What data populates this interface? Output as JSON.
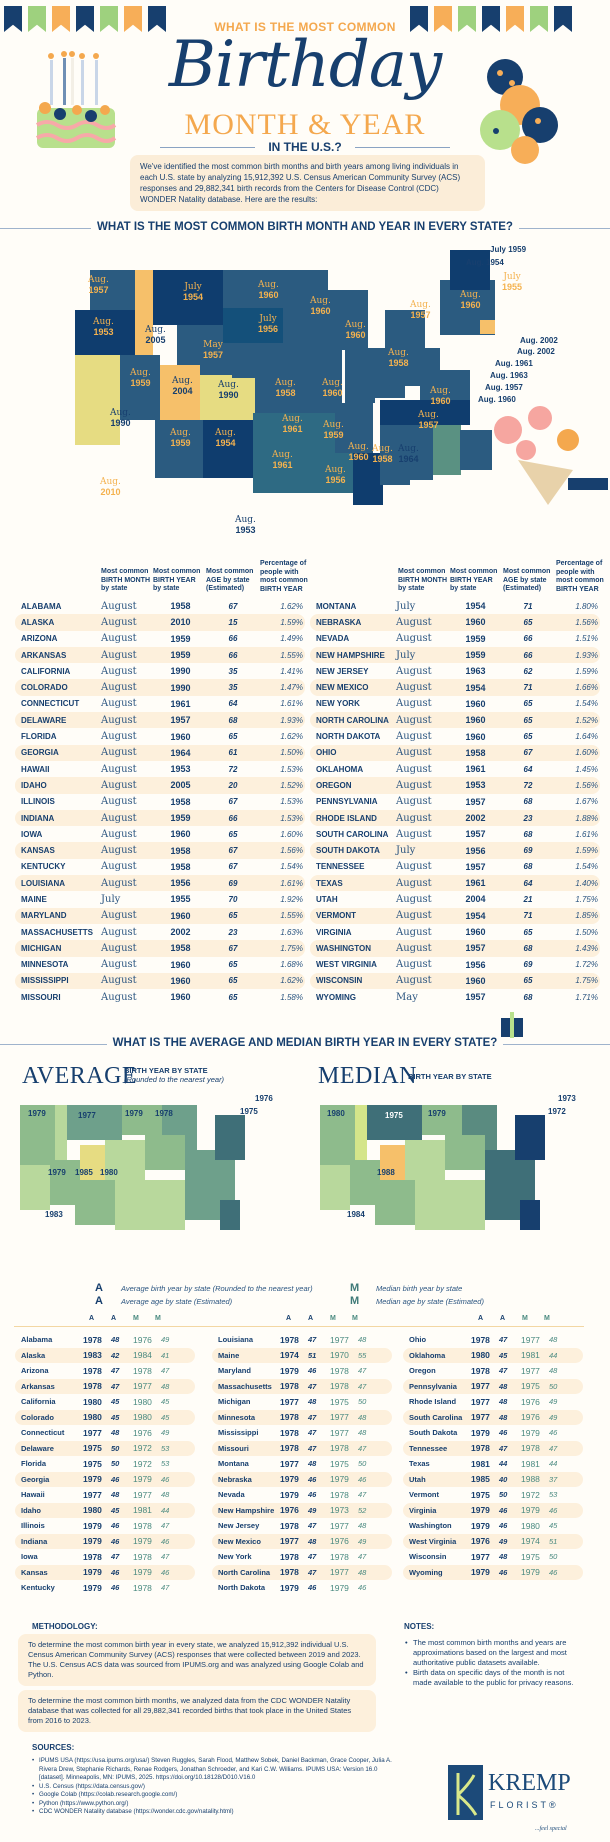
{
  "header": {
    "question": "WHAT IS THE MOST COMMON",
    "title": "Birthday",
    "subtitle": "MONTH & YEAR",
    "region": "IN THE U.S.?",
    "intro": "We've identified the most common birth months and birth years among living individuals in each U.S. state by analyzing 15,912,392 U.S. Census American Community Survey (ACS) responses and 29,882,341 birth records from the Centers for Disease Control (CDC) WONDER Natality database. Here are the results:"
  },
  "colors": {
    "navy": "#173f6e",
    "orange": "#f4a84e",
    "cream": "#fdf0dc",
    "teal": "#4a8a80"
  },
  "section1": {
    "heading": "WHAT IS THE MOST COMMON BIRTH MONTH AND YEAR IN EVERY STATE?",
    "columns": [
      "Most common BIRTH MONTH by state",
      "Most common BIRTH YEAR by state",
      "Most common AGE by state (Estimated)",
      "Percentage of people with most common BIRTH YEAR"
    ],
    "callouts": [
      "Aug. 1954",
      "July 1959",
      "Aug. 2002",
      "Aug. 2002",
      "Aug. 1961",
      "Aug. 1963",
      "Aug. 1957",
      "Aug. 1960"
    ]
  },
  "section2": {
    "heading": "WHAT IS THE AVERAGE AND MEDIAN BIRTH YEAR IN EVERY STATE?",
    "average_title": "AVERAGE",
    "average_sub": "BIRTH YEAR BY STATE",
    "average_note": "(Rounded to the nearest year)",
    "median_title": "MEDIAN",
    "median_sub": "BIRTH YEAR BY STATE",
    "legend": {
      "avg_year": "Average birth year by state (Rounded to the nearest year)",
      "avg_age": "Average age by state (Estimated)",
      "med_year": "Median birth year by state",
      "med_age": "Median age by state (Estimated)",
      "icon_ay": "A",
      "icon_aa": "A",
      "icon_my": "M",
      "icon_ma": "M"
    }
  },
  "methodology": {
    "heading": "METHODOLOGY:",
    "p1": "To determine the most common birth year in every state, we analyzed 15,912,392 individual U.S. Census American Community Survey (ACS) responses that were collected between 2019 and 2023. The U.S. Census ACS data was sourced from IPUMS.org and was analyzed using Google Colab and Python.",
    "p2": "To determine the most common birth months, we analyzed data from the CDC WONDER Natality database that was collected for all 29,882,341 recorded births that took place in the United States from 2016 to 2023."
  },
  "notes": {
    "heading": "NOTES:",
    "items": [
      "The most common birth months and years are approximations based on the largest and most authoritative public datasets available.",
      "Birth data on specific days of the month is not made available to the public for privacy reasons."
    ]
  },
  "sources": {
    "heading": "SOURCES:",
    "items": [
      "IPUMS USA (https://usa.ipums.org/usa/) Steven Ruggles, Sarah Flood, Matthew Sobek, Daniel Backman, Grace Cooper, Julia A. Rivera Drew, Stephanie Richards, Renae Rodgers, Jonathan Schroeder, and Kari C.W. Williams. IPUMS USA: Version 16.0 [dataset]. Minneapolis, MN: IPUMS, 2025. https://doi.org/10.18128/D010.V16.0",
      "U.S. Census (https://data.census.gov/)",
      "Google Colab (https://colab.research.google.com/)",
      "Python (https://www.python.org/)",
      "CDC WONDER Natality database (https://wonder.cdc.gov/natality.html)"
    ]
  },
  "logo": {
    "name": "KREMP",
    "sub": "FLORIST®",
    "tagline": "...feel special"
  },
  "chart_data": [
    {
      "type": "table",
      "title": "Most common birth month and year in every state",
      "columns": [
        "State",
        "Birth Month",
        "Birth Year",
        "Age (Estimated)",
        "Percentage"
      ],
      "rows": [
        [
          "ALABAMA",
          "August",
          "1958",
          "67",
          "1.62%"
        ],
        [
          "ALASKA",
          "August",
          "2010",
          "15",
          "1.59%"
        ],
        [
          "ARIZONA",
          "August",
          "1959",
          "66",
          "1.49%"
        ],
        [
          "ARKANSAS",
          "August",
          "1959",
          "66",
          "1.55%"
        ],
        [
          "CALIFORNIA",
          "August",
          "1990",
          "35",
          "1.41%"
        ],
        [
          "COLORADO",
          "August",
          "1990",
          "35",
          "1.47%"
        ],
        [
          "CONNECTICUT",
          "August",
          "1961",
          "64",
          "1.61%"
        ],
        [
          "DELAWARE",
          "August",
          "1957",
          "68",
          "1.93%"
        ],
        [
          "FLORIDA",
          "August",
          "1960",
          "65",
          "1.62%"
        ],
        [
          "GEORGIA",
          "August",
          "1964",
          "61",
          "1.50%"
        ],
        [
          "HAWAII",
          "August",
          "1953",
          "72",
          "1.53%"
        ],
        [
          "IDAHO",
          "August",
          "2005",
          "20",
          "1.52%"
        ],
        [
          "ILLINOIS",
          "August",
          "1958",
          "67",
          "1.53%"
        ],
        [
          "INDIANA",
          "August",
          "1959",
          "66",
          "1.53%"
        ],
        [
          "IOWA",
          "August",
          "1960",
          "65",
          "1.60%"
        ],
        [
          "KANSAS",
          "August",
          "1958",
          "67",
          "1.56%"
        ],
        [
          "KENTUCKY",
          "August",
          "1958",
          "67",
          "1.54%"
        ],
        [
          "LOUISIANA",
          "August",
          "1956",
          "69",
          "1.61%"
        ],
        [
          "MAINE",
          "July",
          "1955",
          "70",
          "1.92%"
        ],
        [
          "MARYLAND",
          "August",
          "1960",
          "65",
          "1.55%"
        ],
        [
          "MASSACHUSETTS",
          "August",
          "2002",
          "23",
          "1.63%"
        ],
        [
          "MICHIGAN",
          "August",
          "1958",
          "67",
          "1.75%"
        ],
        [
          "MINNESOTA",
          "August",
          "1960",
          "65",
          "1.68%"
        ],
        [
          "MISSISSIPPI",
          "August",
          "1960",
          "65",
          "1.62%"
        ],
        [
          "MISSOURI",
          "August",
          "1960",
          "65",
          "1.58%"
        ],
        [
          "MONTANA",
          "July",
          "1954",
          "71",
          "1.80%"
        ],
        [
          "NEBRASKA",
          "August",
          "1960",
          "65",
          "1.56%"
        ],
        [
          "NEVADA",
          "August",
          "1959",
          "66",
          "1.51%"
        ],
        [
          "NEW HAMPSHIRE",
          "July",
          "1959",
          "66",
          "1.93%"
        ],
        [
          "NEW JERSEY",
          "August",
          "1963",
          "62",
          "1.59%"
        ],
        [
          "NEW MEXICO",
          "August",
          "1954",
          "71",
          "1.66%"
        ],
        [
          "NEW YORK",
          "August",
          "1960",
          "65",
          "1.54%"
        ],
        [
          "NORTH CAROLINA",
          "August",
          "1960",
          "65",
          "1.52%"
        ],
        [
          "NORTH DAKOTA",
          "August",
          "1960",
          "65",
          "1.64%"
        ],
        [
          "OHIO",
          "August",
          "1958",
          "67",
          "1.60%"
        ],
        [
          "OKLAHOMA",
          "August",
          "1961",
          "64",
          "1.45%"
        ],
        [
          "OREGON",
          "August",
          "1953",
          "72",
          "1.56%"
        ],
        [
          "PENNSYLVANIA",
          "August",
          "1957",
          "68",
          "1.67%"
        ],
        [
          "RHODE ISLAND",
          "August",
          "2002",
          "23",
          "1.88%"
        ],
        [
          "SOUTH CAROLINA",
          "August",
          "1957",
          "68",
          "1.61%"
        ],
        [
          "SOUTH DAKOTA",
          "July",
          "1956",
          "69",
          "1.59%"
        ],
        [
          "TENNESSEE",
          "August",
          "1957",
          "68",
          "1.54%"
        ],
        [
          "TEXAS",
          "August",
          "1961",
          "64",
          "1.40%"
        ],
        [
          "UTAH",
          "August",
          "2004",
          "21",
          "1.75%"
        ],
        [
          "VERMONT",
          "August",
          "1954",
          "71",
          "1.85%"
        ],
        [
          "VIRGINIA",
          "August",
          "1960",
          "65",
          "1.50%"
        ],
        [
          "WASHINGTON",
          "August",
          "1957",
          "68",
          "1.43%"
        ],
        [
          "WEST VIRGINIA",
          "August",
          "1956",
          "69",
          "1.72%"
        ],
        [
          "WISCONSIN",
          "August",
          "1960",
          "65",
          "1.75%"
        ],
        [
          "WYOMING",
          "May",
          "1957",
          "68",
          "1.71%"
        ]
      ]
    },
    {
      "type": "table",
      "title": "Average and median birth year in every state",
      "columns": [
        "State",
        "Avg Birth Year",
        "Avg Age",
        "Median Birth Year",
        "Median Age"
      ],
      "rows": [
        [
          "Alabama",
          "1978",
          "48",
          "1976",
          "49"
        ],
        [
          "Alaska",
          "1983",
          "42",
          "1984",
          "41"
        ],
        [
          "Arizona",
          "1978",
          "47",
          "1978",
          "47"
        ],
        [
          "Arkansas",
          "1978",
          "47",
          "1977",
          "48"
        ],
        [
          "California",
          "1980",
          "45",
          "1980",
          "45"
        ],
        [
          "Colorado",
          "1980",
          "45",
          "1980",
          "45"
        ],
        [
          "Connecticut",
          "1977",
          "48",
          "1976",
          "49"
        ],
        [
          "Delaware",
          "1975",
          "50",
          "1972",
          "53"
        ],
        [
          "Florida",
          "1975",
          "50",
          "1972",
          "53"
        ],
        [
          "Georgia",
          "1979",
          "46",
          "1979",
          "46"
        ],
        [
          "Hawaii",
          "1977",
          "48",
          "1977",
          "48"
        ],
        [
          "Idaho",
          "1980",
          "45",
          "1981",
          "44"
        ],
        [
          "Illinois",
          "1979",
          "46",
          "1978",
          "47"
        ],
        [
          "Indiana",
          "1979",
          "46",
          "1979",
          "46"
        ],
        [
          "Iowa",
          "1978",
          "47",
          "1978",
          "47"
        ],
        [
          "Kansas",
          "1979",
          "46",
          "1979",
          "46"
        ],
        [
          "Kentucky",
          "1979",
          "46",
          "1978",
          "47"
        ],
        [
          "Louisiana",
          "1978",
          "47",
          "1977",
          "48"
        ],
        [
          "Maine",
          "1974",
          "51",
          "1970",
          "55"
        ],
        [
          "Maryland",
          "1979",
          "46",
          "1978",
          "47"
        ],
        [
          "Massachusetts",
          "1978",
          "47",
          "1978",
          "47"
        ],
        [
          "Michigan",
          "1977",
          "48",
          "1975",
          "50"
        ],
        [
          "Minnesota",
          "1978",
          "47",
          "1977",
          "48"
        ],
        [
          "Mississippi",
          "1978",
          "47",
          "1977",
          "48"
        ],
        [
          "Missouri",
          "1978",
          "47",
          "1978",
          "47"
        ],
        [
          "Montana",
          "1977",
          "48",
          "1975",
          "50"
        ],
        [
          "Nebraska",
          "1979",
          "46",
          "1979",
          "46"
        ],
        [
          "Nevada",
          "1979",
          "46",
          "1978",
          "47"
        ],
        [
          "New Hampshire",
          "1976",
          "49",
          "1973",
          "52"
        ],
        [
          "New Jersey",
          "1978",
          "47",
          "1977",
          "48"
        ],
        [
          "New Mexico",
          "1977",
          "48",
          "1976",
          "49"
        ],
        [
          "New York",
          "1978",
          "47",
          "1978",
          "47"
        ],
        [
          "North Carolina",
          "1978",
          "47",
          "1977",
          "48"
        ],
        [
          "North Dakota",
          "1979",
          "46",
          "1979",
          "46"
        ],
        [
          "Ohio",
          "1978",
          "47",
          "1977",
          "48"
        ],
        [
          "Oklahoma",
          "1980",
          "45",
          "1981",
          "44"
        ],
        [
          "Oregon",
          "1978",
          "47",
          "1977",
          "48"
        ],
        [
          "Pennsylvania",
          "1977",
          "48",
          "1975",
          "50"
        ],
        [
          "Rhode Island",
          "1977",
          "48",
          "1976",
          "49"
        ],
        [
          "South Carolina",
          "1977",
          "48",
          "1976",
          "49"
        ],
        [
          "South Dakota",
          "1979",
          "46",
          "1979",
          "46"
        ],
        [
          "Tennessee",
          "1978",
          "47",
          "1978",
          "47"
        ],
        [
          "Texas",
          "1981",
          "44",
          "1981",
          "44"
        ],
        [
          "Utah",
          "1985",
          "40",
          "1988",
          "37"
        ],
        [
          "Vermont",
          "1975",
          "50",
          "1972",
          "53"
        ],
        [
          "Virginia",
          "1979",
          "46",
          "1979",
          "46"
        ],
        [
          "Washington",
          "1979",
          "46",
          "1980",
          "45"
        ],
        [
          "West Virginia",
          "1976",
          "49",
          "1974",
          "51"
        ],
        [
          "Wisconsin",
          "1977",
          "48",
          "1975",
          "50"
        ],
        [
          "Wyoming",
          "1979",
          "46",
          "1979",
          "46"
        ]
      ]
    }
  ]
}
